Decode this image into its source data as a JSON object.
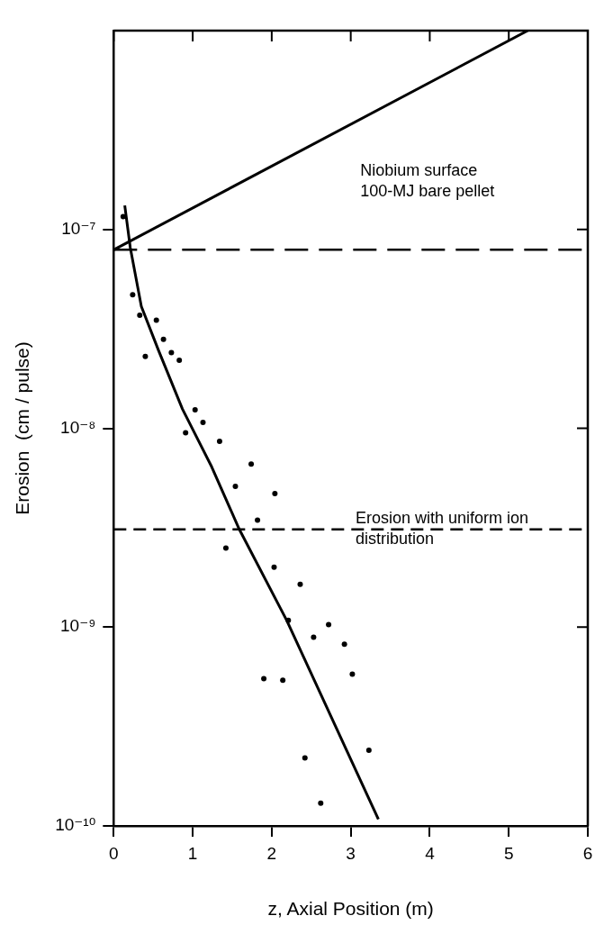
{
  "chart_data": {
    "type": "line",
    "xlabel": "z, Axial Position (m)",
    "ylabel": "Erosion  (cm / pulse)",
    "log": "y",
    "grid": false,
    "legend": false,
    "xlim": [
      0,
      6
    ],
    "xticks": [
      0,
      1,
      2,
      3,
      4,
      5,
      6
    ],
    "ylim": [
      1e-10,
      1e-06
    ],
    "yticks": [
      {
        "value": 1e-10,
        "label": "10⁻¹⁰"
      },
      {
        "value": 1e-09,
        "label": "10⁻⁹"
      },
      {
        "value": 1e-08,
        "label": "10⁻⁸"
      },
      {
        "value": 1e-07,
        "label": "10⁻⁷"
      }
    ],
    "series": [
      {
        "color": "#000000",
        "marker": "none",
        "x": [
          0,
          5.24
        ],
        "values": [
          7.9e-08,
          1e-06
        ]
      },
      {
        "color": "#000000",
        "marker": "none",
        "x": [
          0.14,
          0.21,
          0.35,
          0.57,
          0.87,
          1.24,
          1.59,
          2.19,
          3.35
        ],
        "values": [
          1.32e-07,
          8.1e-08,
          4.1e-08,
          2.45e-08,
          1.25e-08,
          6.4e-09,
          3.1e-09,
          1.08e-09,
          1.08e-10
        ]
      },
      {
        "type": "scatter",
        "color": "#000000",
        "marker": "circle",
        "x": [
          0.12,
          0.24,
          0.33,
          0.54,
          0.63,
          0.4,
          0.73,
          0.83,
          1.03,
          1.13,
          0.91,
          1.34,
          1.74,
          1.54,
          2.04,
          1.82,
          1.42,
          2.03,
          2.36,
          2.21,
          2.72,
          2.53,
          2.92,
          3.02,
          1.9,
          2.14,
          3.23,
          2.42,
          2.62
        ],
        "values": [
          1.16e-07,
          4.7e-08,
          3.7e-08,
          3.5e-08,
          2.8e-08,
          2.3e-08,
          2.4e-08,
          2.2e-08,
          1.24e-08,
          1.07e-08,
          9.5e-09,
          8.6e-09,
          6.6e-09,
          5.1e-09,
          4.7e-09,
          3.45e-09,
          2.5e-09,
          2e-09,
          1.64e-09,
          1.08e-09,
          1.03e-09,
          8.9e-10,
          8.2e-10,
          5.8e-10,
          5.5e-10,
          5.4e-10,
          2.4e-10,
          2.2e-10,
          1.3e-10
        ]
      }
    ],
    "ref_lines": [
      {
        "axis": "y",
        "value": 7.9e-08,
        "line_style": "dashed"
      },
      {
        "axis": "y",
        "value": 3.1e-09,
        "line_style": "dashed",
        "label": "Erosion with uniform ion distribution"
      }
    ],
    "annotations": [
      "Niobium surface 100-MJ bare pellet"
    ]
  }
}
